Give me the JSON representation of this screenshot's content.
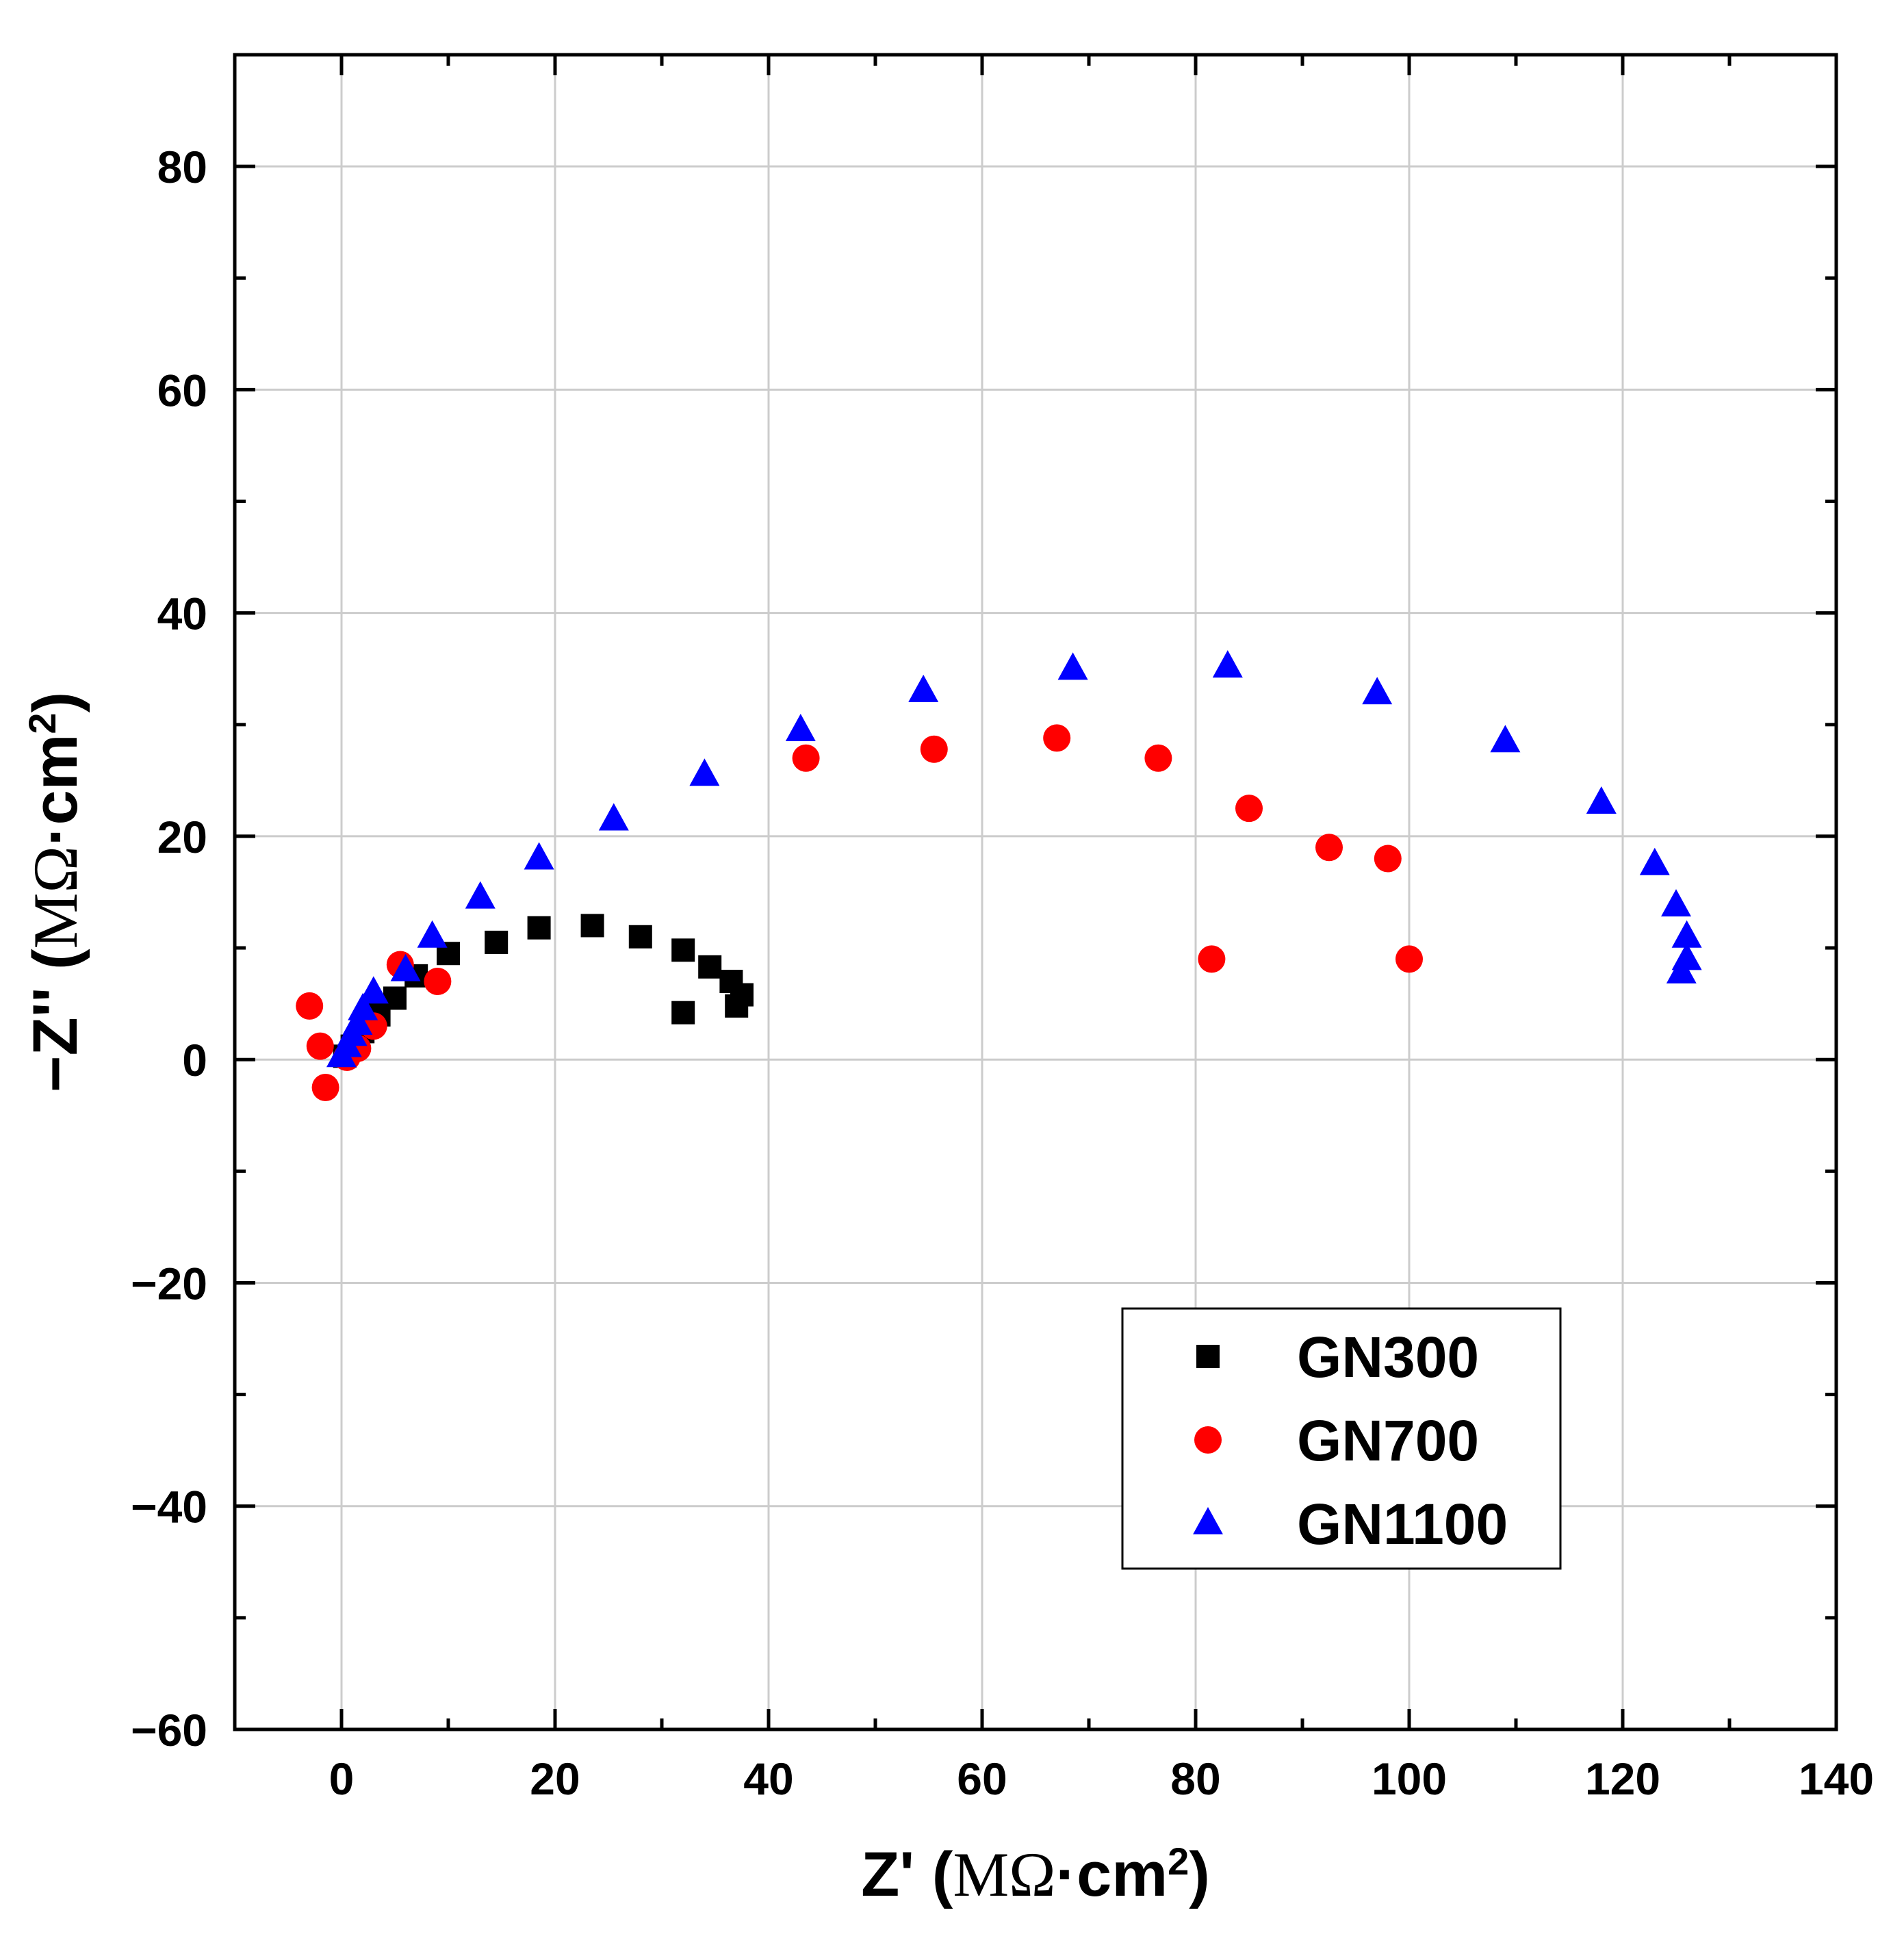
{
  "chart_data": {
    "type": "scatter",
    "title": "",
    "xlabel": "Z' (MΩ·cm²)",
    "ylabel": "−Z'' (MΩ·cm²)",
    "xlabel_parts": {
      "prefix": "Z'",
      "open": " (",
      "unit": "MΩ",
      "rest": "·cm",
      "sup": "2",
      "close": ")"
    },
    "ylabel_parts": {
      "prefix": "−Z''",
      "open": " (",
      "unit": "MΩ",
      "rest": "·cm",
      "sup": "2",
      "close": ")"
    },
    "xlim": [
      -10,
      140
    ],
    "ylim": [
      -60,
      90
    ],
    "xticks": [
      0,
      20,
      40,
      60,
      80,
      100,
      120,
      140
    ],
    "yticks": [
      -60,
      -40,
      -20,
      0,
      20,
      40,
      60,
      80
    ],
    "xtick_labels": [
      "0",
      "20",
      "40",
      "60",
      "80",
      "100",
      "120",
      "140"
    ],
    "ytick_labels": [
      "−60",
      "−40",
      "−20",
      "0",
      "20",
      "40",
      "60",
      "80"
    ],
    "grid": true,
    "legend_position": "lower-right",
    "series": [
      {
        "name": "GN300",
        "marker": "square",
        "color": "#000000",
        "x": [
          0.3,
          1.0,
          2.0,
          3.5,
          5.0,
          7.0,
          10.0,
          14.5,
          18.5,
          23.5,
          28.0,
          32.0,
          34.5,
          36.5,
          37.5,
          37.0,
          32.0
        ],
        "y": [
          0.3,
          1.2,
          2.5,
          4.0,
          5.5,
          7.5,
          9.5,
          10.5,
          11.8,
          12.0,
          11.0,
          9.8,
          8.3,
          7.0,
          5.8,
          4.8,
          4.2
        ]
      },
      {
        "name": "GN700",
        "marker": "circle",
        "color": "#ff0000",
        "x": [
          -3.0,
          -2.0,
          -1.5,
          0.5,
          1.5,
          3.0,
          5.5,
          9.0,
          43.5,
          55.5,
          67.0,
          76.5,
          85.0,
          92.5,
          98.0,
          81.5,
          100.0
        ],
        "y": [
          4.8,
          1.2,
          -2.5,
          0.2,
          1.0,
          3.0,
          8.5,
          7.0,
          27.0,
          27.8,
          28.8,
          27.0,
          22.5,
          19.0,
          18.0,
          9.0,
          9.0
        ]
      },
      {
        "name": "GN1100",
        "marker": "triangle",
        "color": "#0000ff",
        "x": [
          0.0,
          0.5,
          1.0,
          1.5,
          2.0,
          3.0,
          6.0,
          8.5,
          13.0,
          18.5,
          25.5,
          34.0,
          43.0,
          54.5,
          68.5,
          83.0,
          97.0,
          109.0,
          118.0,
          123.0,
          125.0,
          126.0,
          126.0,
          125.5
        ],
        "y": [
          0.3,
          1.2,
          2.2,
          3.2,
          4.5,
          6.0,
          8.0,
          11.0,
          14.5,
          18.0,
          21.5,
          25.5,
          29.5,
          33.0,
          35.0,
          35.2,
          32.8,
          28.5,
          23.0,
          17.5,
          13.8,
          11.0,
          9.0,
          7.8
        ]
      }
    ]
  }
}
